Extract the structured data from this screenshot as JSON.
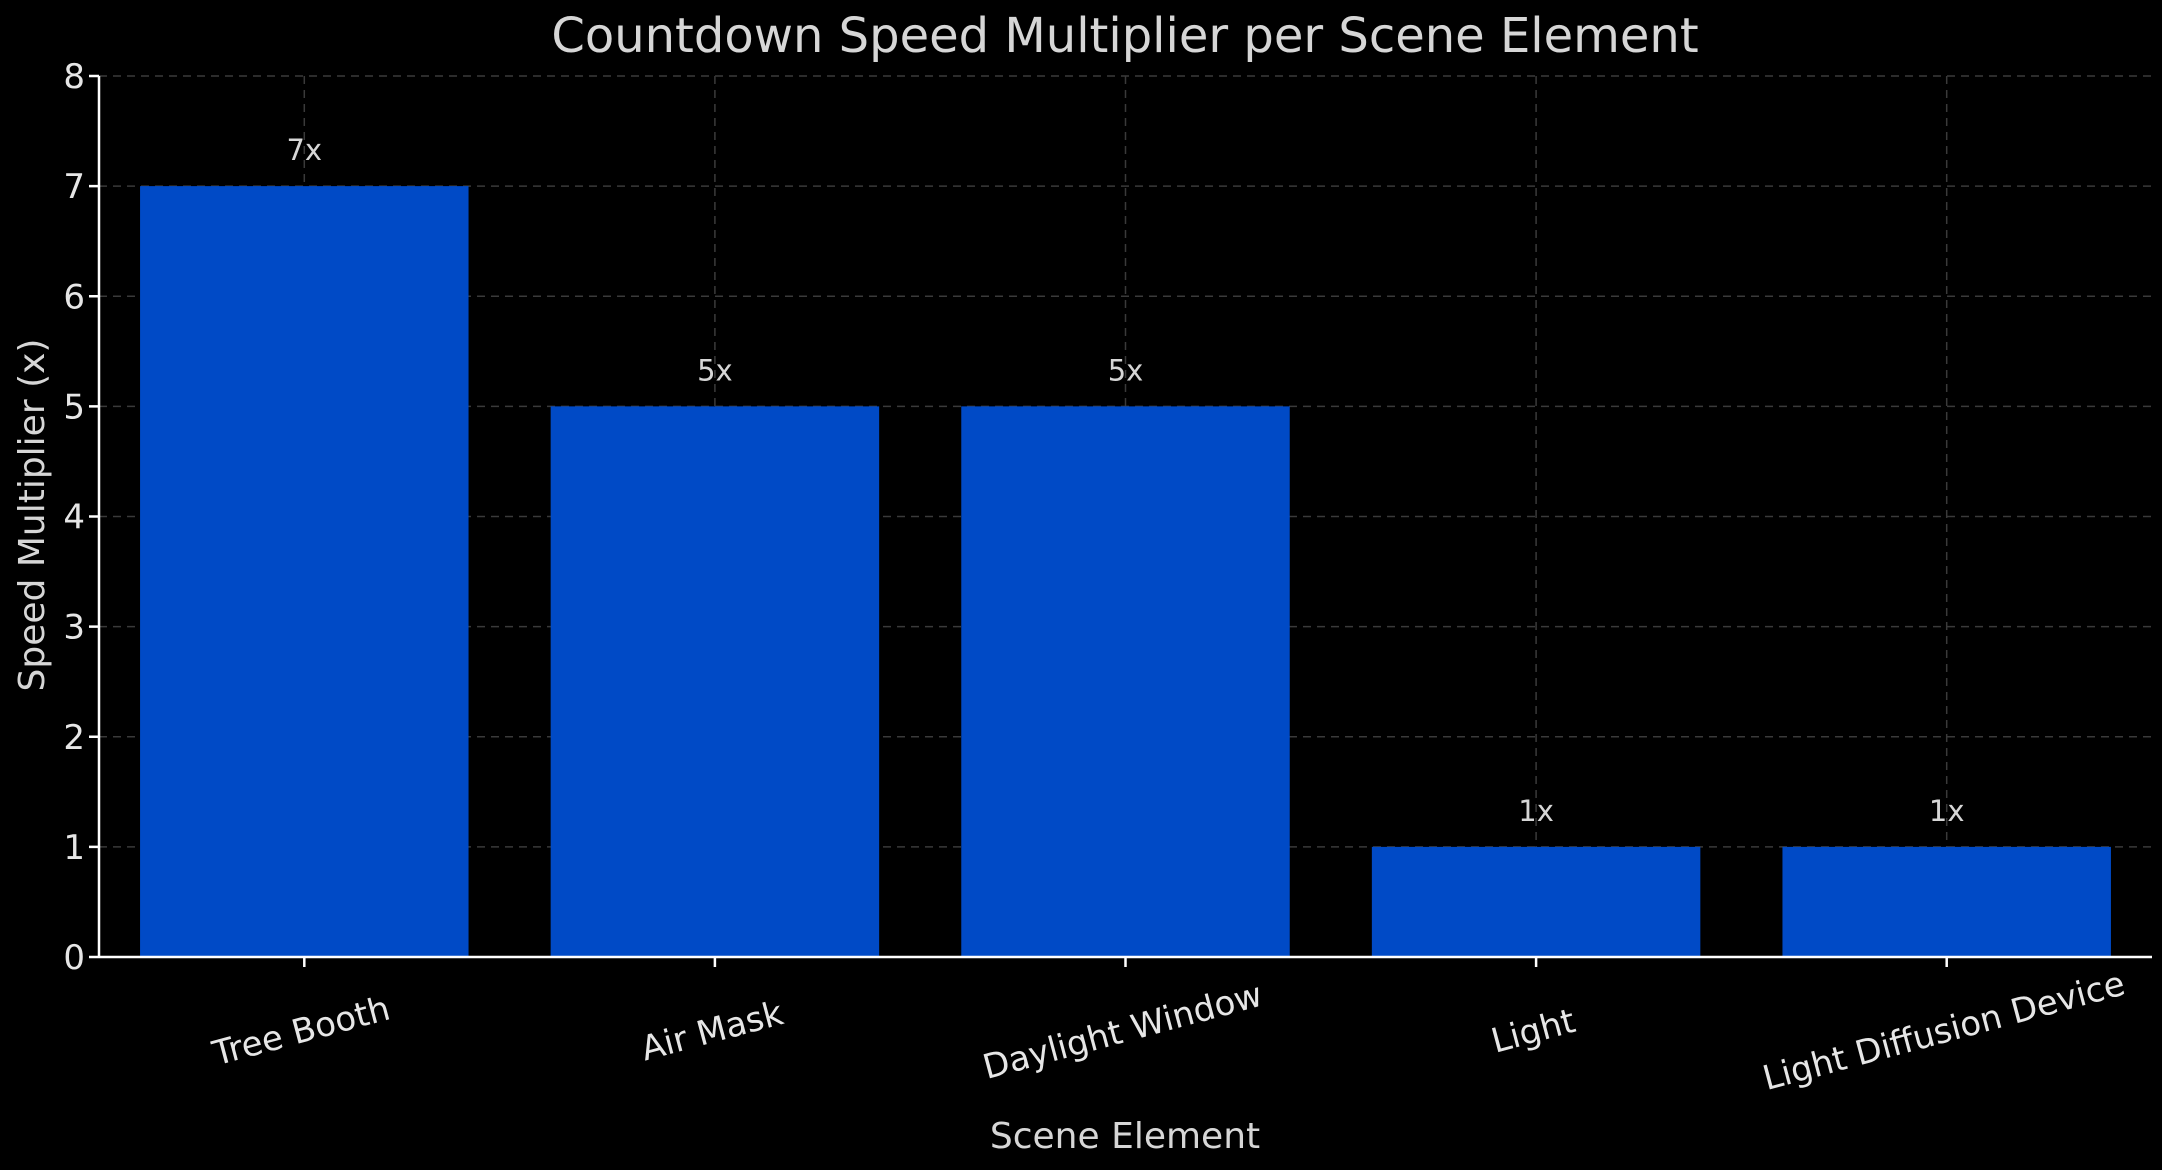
{
  "chart_data": {
    "type": "bar",
    "title": "Countdown Speed Multiplier per Scene Element",
    "xlabel": "Scene Element",
    "ylabel": "Speed Multiplier (x)",
    "categories": [
      "Tree Booth",
      "Air Mask",
      "Daylight Window",
      "Light",
      "Light Diffusion Device"
    ],
    "values": [
      7,
      5,
      5,
      1,
      1
    ],
    "data_labels": [
      "7x",
      "5x",
      "5x",
      "1x",
      "1x"
    ],
    "ylim": [
      0,
      8
    ],
    "yticks": [
      "0",
      "1",
      "2",
      "3",
      "4",
      "5",
      "6",
      "7",
      "8"
    ],
    "grid": true,
    "x_tick_rotation": "rotated",
    "colors": {
      "background": "#000000",
      "bar": "#004ac6",
      "grid": "#3a3a3a",
      "text": "#d6d6d6",
      "axis": "#ffffff"
    }
  }
}
